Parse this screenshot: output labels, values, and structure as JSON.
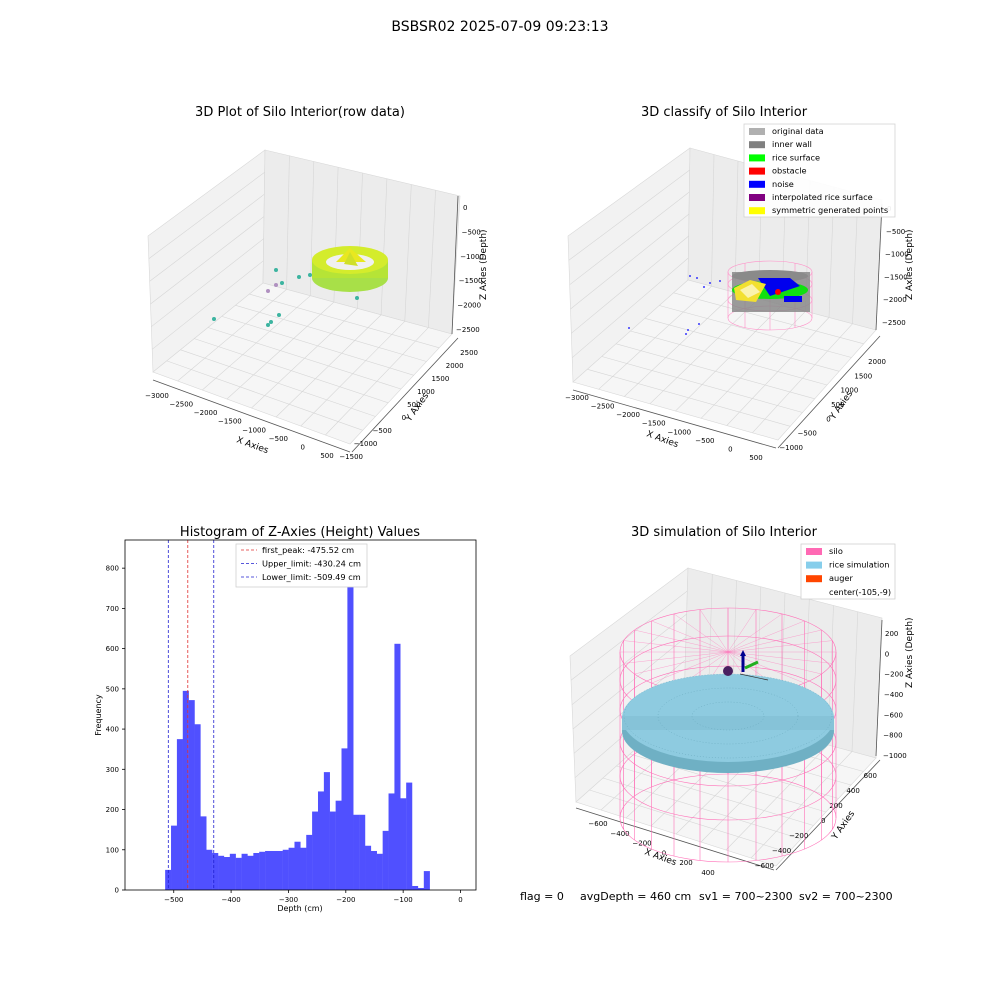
{
  "figure": {
    "suptitle": "BSBSR02 2025-07-09 09:23:13",
    "footer": {
      "flag": "flag = 0",
      "avg_depth": "avgDepth = 460 cm",
      "sv1": "sv1 = 700~2300",
      "sv2": "sv2 = 700~2300"
    }
  },
  "colors": {
    "hist_bar": "#5050ff",
    "peak_line": "#e03030",
    "limit_line": "#2020d0",
    "silo_pink": "#ff80c0",
    "rice_blue": "#87c6dc",
    "auger": "#ff5500",
    "grey": "#808080",
    "rice_surface_green": "#00ff00",
    "obstacle_red": "#ff0000",
    "noise_blue": "#0000ff",
    "interp_purple": "#800080",
    "sym_yellow": "#ffff00",
    "original_grey": "#b0b0b0"
  },
  "chart_data": [
    {
      "type": "scatter",
      "title": "3D Plot of Silo Interior(row data)",
      "xlabel": "X Axies",
      "ylabel": "Y Axies",
      "zlabel": "Z Axies (Depth)",
      "x_ticks": [
        "−3000",
        "−2500",
        "−2000",
        "−1500",
        "−1000",
        "−500",
        "0",
        "500"
      ],
      "y_ticks": [
        "−1500",
        "−1000",
        "−500",
        "0",
        "500",
        "1000",
        "1500",
        "2000",
        "2500"
      ],
      "z_ticks": [
        "0",
        "−500",
        "−1000",
        "−1500",
        "−2000",
        "−2500"
      ]
    },
    {
      "type": "scatter",
      "title": "3D classify of Silo Interior",
      "xlabel": "X Axies",
      "ylabel": "Y Axies",
      "zlabel": "Z Axies (Depth)",
      "x_ticks": [
        "−3000",
        "−2500",
        "−2000",
        "−1500",
        "−1000",
        "−500",
        "0",
        "500"
      ],
      "y_ticks": [
        "−1000",
        "−500",
        "0",
        "500",
        "1000",
        "1500",
        "2000"
      ],
      "z_ticks": [
        "0",
        "−500",
        "−1000",
        "−1500",
        "−2000",
        "−2500"
      ],
      "legend": [
        {
          "label": "original data",
          "color": "#b0b0b0"
        },
        {
          "label": "inner wall",
          "color": "#808080"
        },
        {
          "label": "rice surface",
          "color": "#00ff00"
        },
        {
          "label": "obstacle",
          "color": "#ff0000"
        },
        {
          "label": "noise",
          "color": "#0000ff"
        },
        {
          "label": "interpolated rice surface",
          "color": "#800080"
        },
        {
          "label": "symmetric generated points",
          "color": "#ffff00"
        }
      ],
      "legend_position": "top-right"
    },
    {
      "type": "bar",
      "title": "Histogram of Z-Axies (Height) Values",
      "xlabel": "Depth (cm)",
      "ylabel": "Frequency",
      "xlim": [
        -585,
        27
      ],
      "ylim": [
        0,
        870
      ],
      "x_ticks": [
        -500,
        -400,
        -300,
        -200,
        -100,
        0
      ],
      "x_tick_labels": [
        "−500",
        "−400",
        "−300",
        "−200",
        "−100",
        "0"
      ],
      "y_ticks": [
        0,
        100,
        200,
        300,
        400,
        500,
        600,
        700,
        800
      ],
      "bin_start": -515,
      "bin_width": 10.25,
      "values": [
        50,
        160,
        375,
        495,
        472,
        412,
        183,
        100,
        92,
        85,
        82,
        90,
        80,
        90,
        85,
        92,
        95,
        97,
        97,
        97,
        100,
        105,
        120,
        105,
        137,
        195,
        245,
        293,
        195,
        222,
        352,
        830,
        187,
        187,
        110,
        97,
        90,
        147,
        240,
        612,
        228,
        267,
        10,
        5,
        47
      ],
      "vlines": [
        {
          "label": "first_peak: -475.52 cm",
          "x": -475.52,
          "color": "#e03030"
        },
        {
          "label": "Upper_limit: -430.24 cm",
          "x": -430.24,
          "color": "#2020d0"
        },
        {
          "label": "Lower_limit: -509.49 cm",
          "x": -509.49,
          "color": "#2020d0"
        }
      ],
      "legend_position": "top-center"
    },
    {
      "type": "scatter",
      "title": "3D simulation of Silo Interior",
      "xlabel": "X Axies",
      "ylabel": "Y Axies",
      "zlabel": "Z Axies (Depth)",
      "x_ticks": [
        "−600",
        "−400",
        "−200",
        "0",
        "200",
        "400"
      ],
      "y_ticks": [
        "−600",
        "−400",
        "−200",
        "0",
        "200",
        "400",
        "600"
      ],
      "z_ticks": [
        "200",
        "0",
        "−200",
        "−400",
        "−600",
        "−800",
        "−1000"
      ],
      "legend": [
        {
          "label": "silo",
          "color": "#ff69b4"
        },
        {
          "label": "rice simulation",
          "color": "#87ceeb"
        },
        {
          "label": "auger",
          "color": "#ff4500"
        },
        {
          "label": "center(-105,-9)",
          "color": ""
        }
      ],
      "legend_position": "top-right"
    }
  ]
}
